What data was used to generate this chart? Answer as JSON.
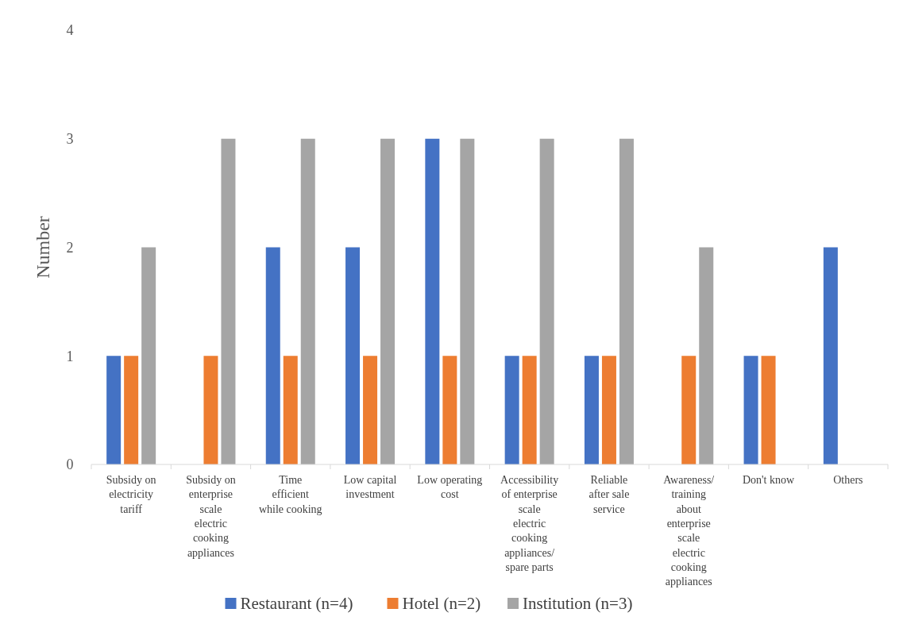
{
  "chart_data": {
    "type": "bar",
    "ylabel": "Number",
    "categories": [
      "Subsidy on electricity tariff",
      "Subsidy on enterprise scale electric cooking appliances",
      "Time efficient while cooking",
      "Low capital investment",
      "Low operating cost",
      "Accessibility of enterprise scale electric cooking appliances/ spare parts",
      "Reliable after sale service",
      "Awareness/ training about enterprise scale electric cooking appliances",
      "Don't know",
      "Others"
    ],
    "series": [
      {
        "name": "Restaurant (n=4)",
        "color": "#4472c4",
        "values": [
          1,
          0,
          2,
          2,
          3,
          1,
          1,
          0,
          1,
          2
        ]
      },
      {
        "name": "Hotel (n=2)",
        "color": "#ed7d31",
        "values": [
          1,
          1,
          1,
          1,
          1,
          1,
          1,
          1,
          1,
          0
        ]
      },
      {
        "name": "Institution (n=3)",
        "color": "#a5a5a5",
        "values": [
          2,
          3,
          3,
          3,
          3,
          3,
          3,
          2,
          0,
          0
        ]
      }
    ],
    "ylim": [
      0,
      4
    ],
    "yticks": [
      0,
      1,
      2,
      3,
      4
    ],
    "grid": false,
    "legend": "bottom"
  }
}
